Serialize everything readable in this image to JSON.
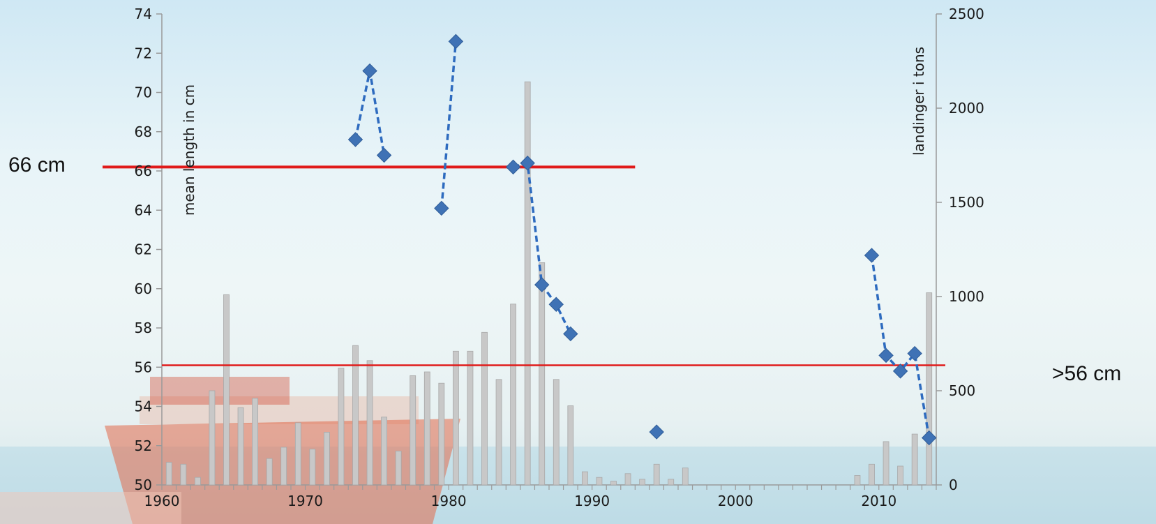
{
  "chart_data": {
    "type": "bar+scatter",
    "x_axis": {
      "min": 1960,
      "max": 2014,
      "ticks": [
        1960,
        1970,
        1980,
        1990,
        2000,
        2010
      ]
    },
    "y_left": {
      "label": "mean length in cm",
      "min": 50,
      "max": 74,
      "ticks": [
        50,
        52,
        54,
        56,
        58,
        60,
        62,
        64,
        66,
        68,
        70,
        72,
        74
      ]
    },
    "y_right": {
      "label": "landinger i tons",
      "min": 0,
      "max": 2500,
      "ticks": [
        0,
        500,
        1000,
        1500,
        2000,
        2500
      ]
    },
    "reference_lines": [
      {
        "label": "66 cm",
        "value": 66.2,
        "color": "#e01a1a",
        "x_from": 1960,
        "x_to": 1993
      },
      {
        "label": ">56 cm",
        "value": 56.1,
        "color": "#e01a1a",
        "x_from": 1960,
        "x_to": 2014
      }
    ],
    "landings": {
      "axis": "right",
      "color": "#c8c8c8",
      "years": [
        1960,
        1961,
        1962,
        1963,
        1964,
        1965,
        1966,
        1967,
        1968,
        1969,
        1970,
        1971,
        1972,
        1973,
        1974,
        1975,
        1976,
        1977,
        1978,
        1979,
        1980,
        1981,
        1982,
        1983,
        1984,
        1985,
        1986,
        1987,
        1988,
        1989,
        1990,
        1991,
        1992,
        1993,
        1994,
        1995,
        1996,
        2008,
        2009,
        2010,
        2011,
        2012,
        2013
      ],
      "values": [
        120,
        110,
        40,
        500,
        1010,
        410,
        460,
        140,
        200,
        330,
        190,
        280,
        620,
        740,
        660,
        360,
        180,
        580,
        600,
        540,
        710,
        710,
        810,
        560,
        960,
        2140,
        1180,
        560,
        420,
        70,
        40,
        20,
        60,
        30,
        110,
        30,
        90,
        50,
        110,
        230,
        100,
        270,
        1020
      ]
    },
    "mean_length": {
      "axis": "left",
      "marker_color": "#3f72b5",
      "points": [
        [
          1973,
          67.6
        ],
        [
          1974,
          71.1
        ],
        [
          1975,
          66.8
        ],
        [
          1979,
          64.1
        ],
        [
          1980,
          72.6
        ],
        [
          1984,
          66.2
        ],
        [
          1985,
          66.4
        ],
        [
          1986,
          60.2
        ],
        [
          1987,
          59.2
        ],
        [
          1988,
          57.7
        ],
        [
          1994,
          52.7
        ],
        [
          2009,
          61.7
        ],
        [
          2010,
          56.6
        ],
        [
          2011,
          55.8
        ],
        [
          2012,
          56.7
        ],
        [
          2013,
          52.4
        ]
      ],
      "connected_segments": [
        [
          1973,
          1974,
          1975
        ],
        [
          1979,
          1980
        ],
        [
          1984,
          1985,
          1986,
          1987,
          1988
        ],
        [
          2009,
          2010,
          2011,
          2012,
          2013
        ]
      ]
    }
  }
}
